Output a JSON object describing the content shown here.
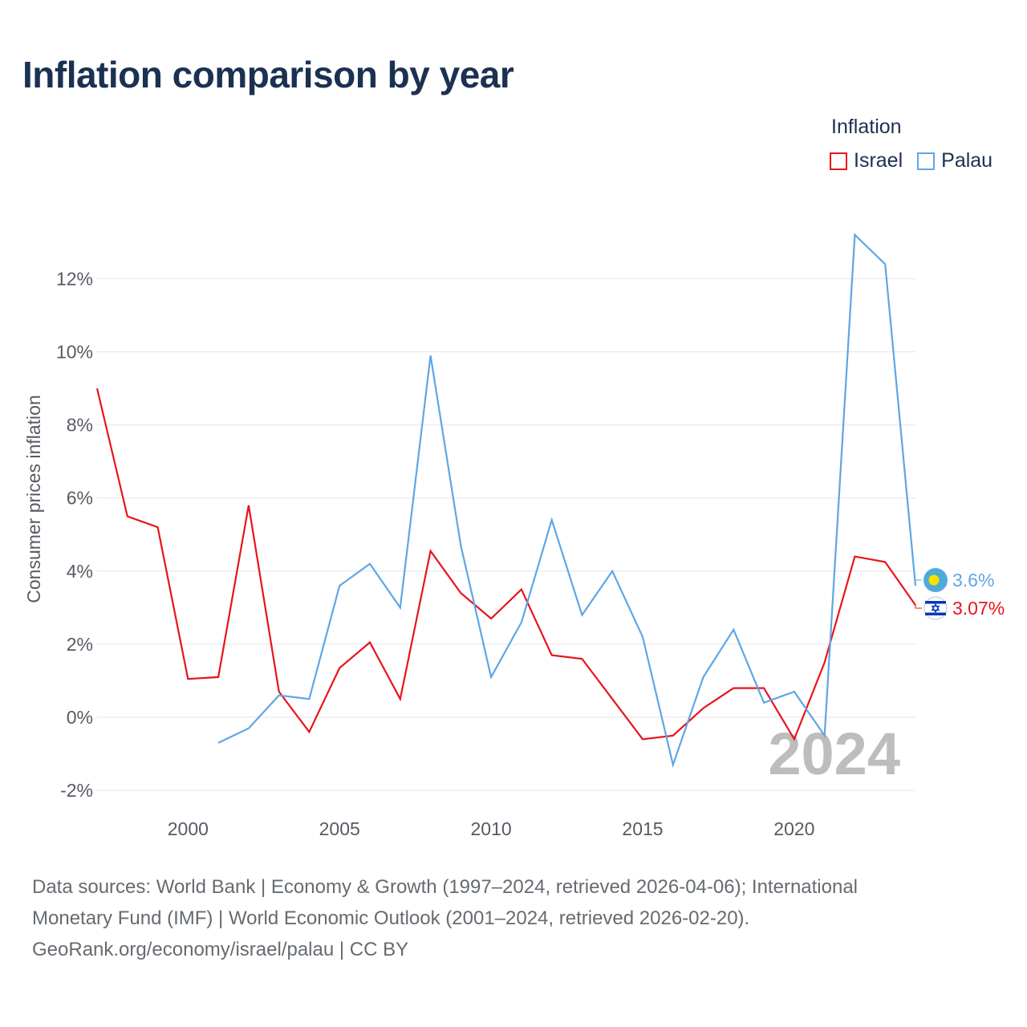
{
  "title": "Inflation comparison by year",
  "legend": {
    "title": "Inflation",
    "items": [
      {
        "label": "Israel",
        "color": "#e8141b"
      },
      {
        "label": "Palau",
        "color": "#5fa6e4"
      }
    ]
  },
  "chart_data": {
    "type": "line",
    "title": "Inflation comparison by year",
    "xlabel": "",
    "ylabel": "Consumer prices inflation",
    "xlim": [
      1997,
      2024
    ],
    "ylim": [
      -2,
      13
    ],
    "yticks": [
      -2,
      0,
      2,
      4,
      6,
      8,
      10,
      12
    ],
    "ytick_labels": [
      "-2%",
      "0%",
      "2%",
      "4%",
      "6%",
      "8%",
      "10%",
      "12%"
    ],
    "xticks": [
      2000,
      2005,
      2010,
      2015,
      2020
    ],
    "xtick_labels": [
      "2000",
      "2005",
      "2010",
      "2015",
      "2020"
    ],
    "grid": true,
    "legend_position": "top-right",
    "current_year": "2024",
    "series": [
      {
        "name": "Israel",
        "color": "#e8141b",
        "end_label": "3.07%",
        "x": [
          1997,
          1998,
          1999,
          2000,
          2001,
          2002,
          2003,
          2004,
          2005,
          2006,
          2007,
          2008,
          2009,
          2010,
          2011,
          2012,
          2013,
          2014,
          2015,
          2016,
          2017,
          2018,
          2019,
          2020,
          2021,
          2022,
          2023,
          2024
        ],
        "values": [
          9.0,
          5.5,
          5.2,
          1.05,
          1.1,
          5.8,
          0.7,
          -0.4,
          1.35,
          2.05,
          0.5,
          4.55,
          3.4,
          2.7,
          3.5,
          1.7,
          1.6,
          0.5,
          -0.6,
          -0.5,
          0.25,
          0.8,
          0.8,
          -0.6,
          1.5,
          4.4,
          4.25,
          3.07
        ]
      },
      {
        "name": "Palau",
        "color": "#5fa6e4",
        "end_label": "3.6%",
        "x": [
          2001,
          2002,
          2003,
          2004,
          2005,
          2006,
          2007,
          2008,
          2009,
          2010,
          2011,
          2012,
          2013,
          2014,
          2015,
          2016,
          2017,
          2018,
          2019,
          2020,
          2021,
          2022,
          2023,
          2024
        ],
        "values": [
          -0.7,
          -0.3,
          0.6,
          0.5,
          3.6,
          4.2,
          3.0,
          9.9,
          4.7,
          1.1,
          2.6,
          5.4,
          2.8,
          4.0,
          2.2,
          -1.3,
          1.1,
          2.4,
          0.4,
          0.7,
          -0.5,
          13.2,
          12.4,
          3.6
        ]
      }
    ]
  },
  "sources": {
    "line1": "Data sources: World Bank | Economy & Growth (1997–2024, retrieved 2026-04-06); International",
    "line2": "Monetary Fund (IMF) | World Economic Outlook (2001–2024, retrieved 2026-02-20).",
    "line3": "GeoRank.org/economy/israel/palau | CC BY"
  },
  "flags": {
    "palau": "palau-flag-icon",
    "israel": "israel-flag-icon"
  }
}
